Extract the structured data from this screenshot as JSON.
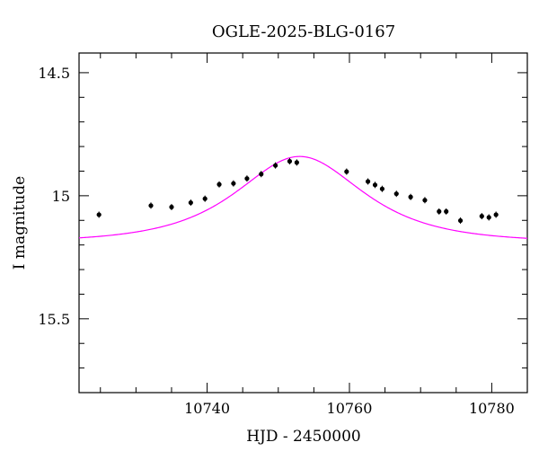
{
  "chart_data": {
    "type": "scatter",
    "title": "OGLE-2025-BLG-0167",
    "xlabel": "HJD - 2450000",
    "ylabel": "I magnitude",
    "xlim": [
      10722,
      10785
    ],
    "ylim": [
      15.8,
      14.42
    ],
    "y_inverted": true,
    "x_major_ticks": [
      10740,
      10760,
      10780
    ],
    "x_major_tick_labels": [
      "10740",
      "10760",
      "10780"
    ],
    "x_minor_step": 5,
    "y_major_ticks": [
      14.5,
      15,
      15.5
    ],
    "y_major_tick_labels": [
      "14.5",
      "15",
      "15.5"
    ],
    "y_minor_step": 0.1,
    "grid": false,
    "data_color": "#000000",
    "model_color": "#ff00ff",
    "points": [
      {
        "x": 10724.8,
        "y": 15.077
      },
      {
        "x": 10732.1,
        "y": 15.04
      },
      {
        "x": 10735.0,
        "y": 15.046
      },
      {
        "x": 10737.7,
        "y": 15.028
      },
      {
        "x": 10739.7,
        "y": 15.012
      },
      {
        "x": 10741.7,
        "y": 14.954
      },
      {
        "x": 10743.7,
        "y": 14.95
      },
      {
        "x": 10745.6,
        "y": 14.93
      },
      {
        "x": 10747.6,
        "y": 14.912
      },
      {
        "x": 10749.6,
        "y": 14.877
      },
      {
        "x": 10751.6,
        "y": 14.86
      },
      {
        "x": 10752.6,
        "y": 14.865
      },
      {
        "x": 10759.6,
        "y": 14.902
      },
      {
        "x": 10762.6,
        "y": 14.942
      },
      {
        "x": 10763.6,
        "y": 14.956
      },
      {
        "x": 10764.6,
        "y": 14.972
      },
      {
        "x": 10766.6,
        "y": 14.992
      },
      {
        "x": 10768.6,
        "y": 15.005
      },
      {
        "x": 10770.6,
        "y": 15.018
      },
      {
        "x": 10772.6,
        "y": 15.064
      },
      {
        "x": 10773.6,
        "y": 15.064
      },
      {
        "x": 10775.6,
        "y": 15.101
      },
      {
        "x": 10778.6,
        "y": 15.083
      },
      {
        "x": 10779.6,
        "y": 15.088
      },
      {
        "x": 10780.6,
        "y": 15.077
      }
    ],
    "model": {
      "type": "Paczynski point-lens",
      "t0": 10753.0,
      "tE": 11.0,
      "u0": 0.95,
      "baseline_mag": 15.19
    }
  }
}
